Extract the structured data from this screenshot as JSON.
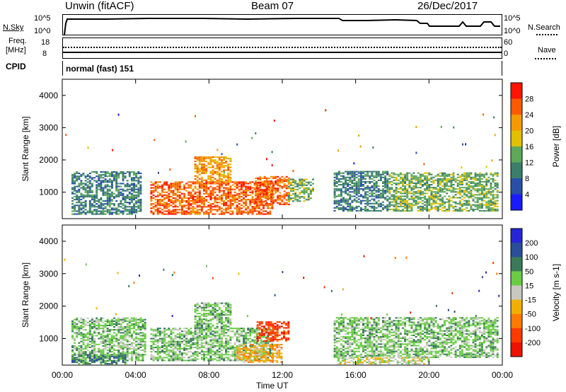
{
  "header": {
    "station": "Unwin (fitACF)",
    "beam": "Beam 07",
    "date": "26/Dec/2017"
  },
  "top_panels": {
    "nsky_label": "N.Sky",
    "nsearch_label": "N.Search",
    "nsky_ticks": [
      "10^5",
      "10^0"
    ],
    "nsearch_ticks": [
      "10^5",
      "10^0"
    ],
    "freq_label_1": "Freq.",
    "freq_label_2": "[MHz]",
    "freq_ticks": [
      "18",
      "8"
    ],
    "nave_label": "Nave",
    "nave_ticks": [
      "60",
      "0"
    ],
    "cpid_label": "CPID",
    "cpid_text": "normal (fast) 151"
  },
  "colors": {
    "power_scale": [
      "#1a1aff",
      "#2a4fa8",
      "#3a7f6a",
      "#5ea85a",
      "#e0c000",
      "#f59a00",
      "#ff5a00",
      "#ff1500"
    ],
    "velocity_scale": [
      "#2626d8",
      "#2a4f9a",
      "#3a7a5a",
      "#6acc44",
      "#c8c8c0",
      "#f0b000",
      "#ff7a00",
      "#ff3a00",
      "#ee1100"
    ]
  },
  "chart_data": [
    {
      "type": "heatmap",
      "title": "Power",
      "ylabel": "Slant Range [km]",
      "xlabel": "Time UT",
      "x_ticks": [
        "00:00",
        "04:00",
        "08:00",
        "12:00",
        "16:00",
        "20:00",
        "00:00"
      ],
      "y_ticks": [
        "1000",
        "2000",
        "3000",
        "4000"
      ],
      "ylim": [
        180,
        4500
      ],
      "colorbar_label": "Power [dB]",
      "colorbar_ticks": [
        "4",
        "8",
        "12",
        "16",
        "20",
        "24",
        "28"
      ],
      "regions": [
        {
          "t0": 0.5,
          "t1": 4.3,
          "r0": 300,
          "r1": 1650,
          "level": 3
        },
        {
          "t0": 4.8,
          "t1": 11.5,
          "r0": 300,
          "r1": 1300,
          "level": 7
        },
        {
          "t0": 7.2,
          "t1": 9.2,
          "r0": 1300,
          "r1": 2100,
          "level": 6
        },
        {
          "t0": 10.5,
          "t1": 12.3,
          "r0": 600,
          "r1": 1500,
          "level": 7
        },
        {
          "t0": 12.3,
          "t1": 13.7,
          "r0": 700,
          "r1": 1400,
          "level": 4
        },
        {
          "t0": 14.8,
          "t1": 17.8,
          "r0": 400,
          "r1": 1650,
          "level": 3
        },
        {
          "t0": 17.8,
          "t1": 23.7,
          "r0": 400,
          "r1": 1600,
          "level": 4
        }
      ]
    },
    {
      "type": "heatmap",
      "title": "Velocity",
      "ylabel": "Slant Range [km]",
      "xlabel": "Time UT",
      "x_ticks": [
        "00:00",
        "04:00",
        "08:00",
        "12:00",
        "16:00",
        "20:00",
        "00:00"
      ],
      "y_ticks": [
        "1000",
        "2000",
        "3000",
        "4000"
      ],
      "ylim": [
        180,
        4500
      ],
      "colorbar_label": "Velocity [m s-1]",
      "colorbar_ticks": [
        "200",
        "100",
        "50",
        "15",
        "-15",
        "-50",
        "-100",
        "-200"
      ],
      "regions": [
        {
          "t0": 0.5,
          "t1": 4.5,
          "r0": 300,
          "r1": 1650,
          "level": 4
        },
        {
          "t0": 0.5,
          "t1": 3.5,
          "r0": 200,
          "r1": 500,
          "level": 3
        },
        {
          "t0": 4.8,
          "t1": 11.5,
          "r0": 300,
          "r1": 1300,
          "level": 4
        },
        {
          "t0": 7.2,
          "t1": 9.2,
          "r0": 1300,
          "r1": 2100,
          "level": 4
        },
        {
          "t0": 10.6,
          "t1": 12.3,
          "r0": 900,
          "r1": 1500,
          "level": 8
        },
        {
          "t0": 9.5,
          "t1": 12.0,
          "r0": 250,
          "r1": 800,
          "level": 6
        },
        {
          "t0": 14.8,
          "t1": 23.7,
          "r0": 400,
          "r1": 1650,
          "level": 4
        },
        {
          "t0": 15.0,
          "t1": 20.0,
          "r0": 200,
          "r1": 400,
          "level": 5
        }
      ]
    }
  ]
}
